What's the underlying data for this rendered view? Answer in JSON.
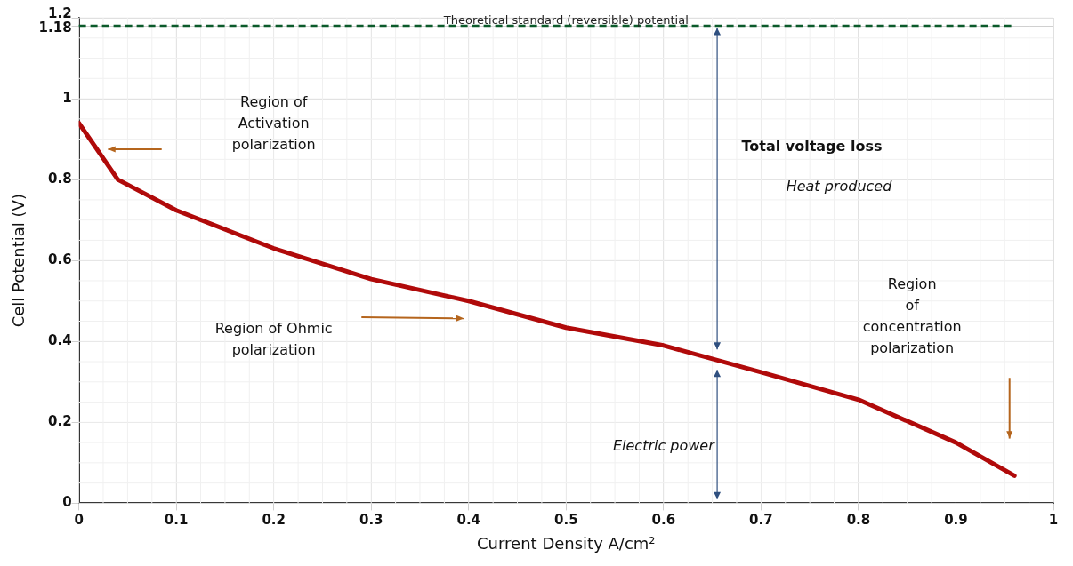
{
  "chart_data": {
    "type": "line",
    "xlabel": "Current Density A/cm²",
    "ylabel": "Cell Potential (V)",
    "x": [
      0,
      0.04,
      0.1,
      0.2,
      0.3,
      0.4,
      0.5,
      0.6,
      0.7,
      0.8,
      0.9,
      0.96
    ],
    "series": [
      {
        "color": "#b00a0a",
        "values": [
          0.94,
          0.8,
          0.724,
          0.63,
          0.554,
          0.5,
          0.434,
          0.39,
          0.324,
          0.256,
          0.15,
          0.068
        ]
      }
    ],
    "xlim": [
      0,
      1
    ],
    "xticks": [
      0,
      0.1,
      0.2,
      0.3,
      0.4,
      0.5,
      0.6,
      0.7,
      0.8,
      0.9,
      1
    ],
    "ylim": [
      0,
      1.2
    ],
    "yticks": [
      0,
      0.2,
      0.4,
      0.6,
      0.8,
      1,
      1.18,
      1.2
    ],
    "ref_lines": [
      {
        "axis": "y",
        "value": 1.18,
        "label": "Theoretical standard (reversible) potential",
        "color": "#0b5a2a",
        "line_style": "dashed"
      }
    ],
    "annotations": [
      "Region of\nActivation\npolarization",
      "Region of Ohmic\npolarization",
      "Total voltage loss",
      "Heat produced",
      "Electric power",
      "Region\nof\nconcentration\npolarization"
    ],
    "grid": true,
    "legend": false,
    "marker": "none",
    "line_style": "solid"
  }
}
